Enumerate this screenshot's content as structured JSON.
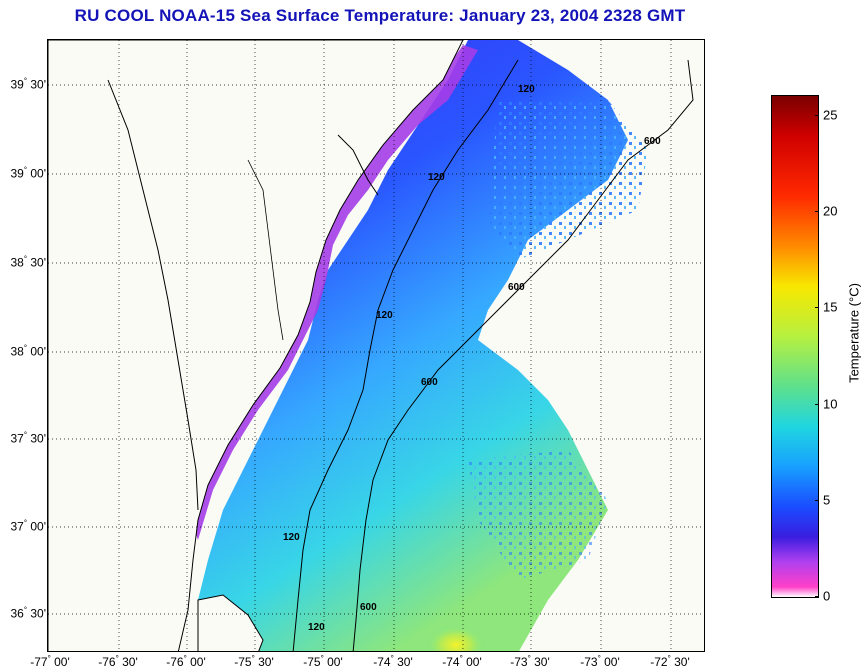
{
  "title": "RU COOL  NOAA-15  Sea Surface Temperature:  January 23, 2004 2328 GMT",
  "map": {
    "lat_labels": [
      {
        "deg": "39",
        "min": "30'"
      },
      {
        "deg": "39",
        "min": "00'"
      },
      {
        "deg": "38",
        "min": "30'"
      },
      {
        "deg": "38",
        "min": "00'"
      },
      {
        "deg": "37",
        "min": "30'"
      },
      {
        "deg": "37",
        "min": "00'"
      },
      {
        "deg": "36",
        "min": "30'"
      }
    ],
    "lon_labels": [
      {
        "deg": "-77",
        "min": "00'"
      },
      {
        "deg": "-76",
        "min": "30'"
      },
      {
        "deg": "-76",
        "min": "00'"
      },
      {
        "deg": "-75",
        "min": "30'"
      },
      {
        "deg": "-75",
        "min": "00'"
      },
      {
        "deg": "-74",
        "min": "30'"
      },
      {
        "deg": "-74",
        "min": "00'"
      },
      {
        "deg": "-73",
        "min": "30'"
      },
      {
        "deg": "-73",
        "min": "00'"
      },
      {
        "deg": "-72",
        "min": "30'"
      }
    ],
    "contour_labels": [
      "120",
      "120",
      "120",
      "120",
      "120",
      "600",
      "600",
      "600",
      "600"
    ]
  },
  "colorbar": {
    "title": "Temperature (°C)",
    "ticks": [
      "25",
      "20",
      "15",
      "10",
      "5",
      "0"
    ],
    "range": [
      0,
      26
    ]
  }
}
